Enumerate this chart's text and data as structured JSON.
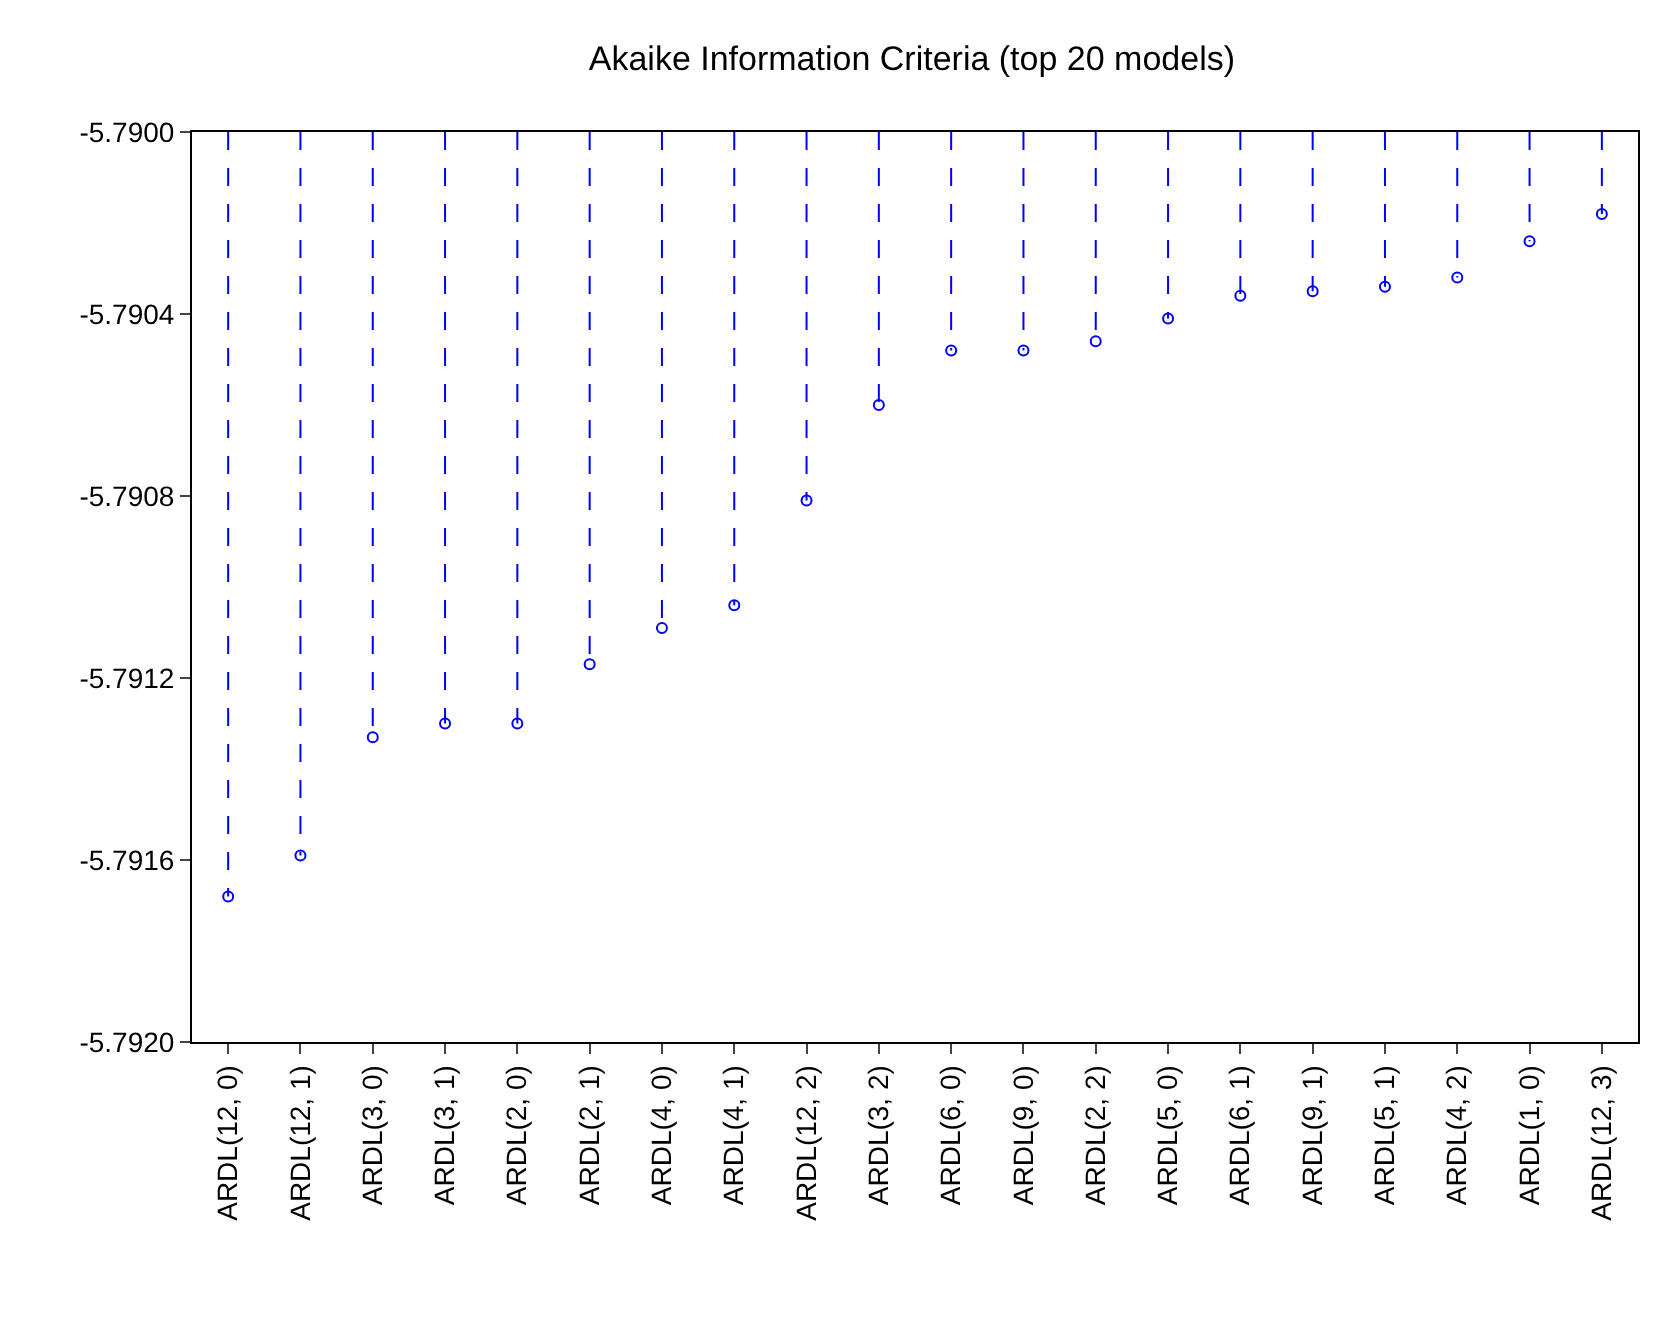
{
  "chart_data": {
    "type": "lollipop",
    "title": "Akaike Information Criteria (top 20 models)",
    "categories": [
      "ARDL(12, 0)",
      "ARDL(12, 1)",
      "ARDL(3, 0)",
      "ARDL(3, 1)",
      "ARDL(2, 0)",
      "ARDL(2, 1)",
      "ARDL(4, 0)",
      "ARDL(4, 1)",
      "ARDL(12, 2)",
      "ARDL(3, 2)",
      "ARDL(6, 0)",
      "ARDL(9, 0)",
      "ARDL(2, 2)",
      "ARDL(5, 0)",
      "ARDL(6, 1)",
      "ARDL(9, 1)",
      "ARDL(5, 1)",
      "ARDL(4, 2)",
      "ARDL(1, 0)",
      "ARDL(12, 3)"
    ],
    "values": [
      -5.79168,
      -5.79159,
      -5.79133,
      -5.7913,
      -5.7913,
      -5.79117,
      -5.79109,
      -5.79104,
      -5.79081,
      -5.7906,
      -5.79048,
      -5.79048,
      -5.79046,
      -5.79041,
      -5.79036,
      -5.79035,
      -5.79034,
      -5.79032,
      -5.79024,
      -5.79018
    ],
    "color": "#0000ff",
    "line_style": "dashed",
    "marker": "circle",
    "ylim": [
      -5.792,
      -5.79
    ],
    "yticks": [
      {
        "value": -5.792,
        "label": "-5.7920"
      },
      {
        "value": -5.7916,
        "label": "-5.7916"
      },
      {
        "value": -5.7912,
        "label": "-5.7912"
      },
      {
        "value": -5.7908,
        "label": "-5.7908"
      },
      {
        "value": -5.7904,
        "label": "-5.7904"
      },
      {
        "value": -5.79,
        "label": "-5.7900"
      }
    ]
  }
}
